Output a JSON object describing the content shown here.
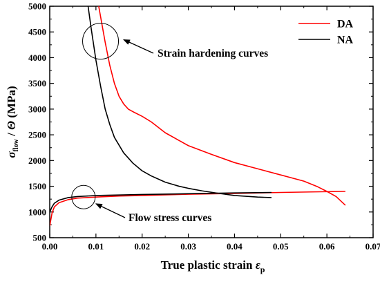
{
  "chart_data": {
    "type": "line",
    "xlabel": "True plastic strain ε",
    "xlabel_sub": "p",
    "ylabel": "σ / Θ (MPa)",
    "ylabel_sub": "flow",
    "xlim": [
      0.0,
      0.07
    ],
    "ylim": [
      500,
      5000
    ],
    "x_ticks": [
      "0.00",
      "0.01",
      "0.02",
      "0.03",
      "0.04",
      "0.05",
      "0.06",
      "0.07"
    ],
    "y_ticks": [
      "500",
      "1000",
      "1500",
      "2000",
      "2500",
      "3000",
      "3500",
      "4000",
      "4500",
      "5000"
    ],
    "legend_position": "top-right",
    "grid": false,
    "series": [
      {
        "name": "DA",
        "color": "#ff0000",
        "curves": [
          {
            "kind": "strain-hardening",
            "points": [
              [
                0.0106,
                5000
              ],
              [
                0.0112,
                4700
              ],
              [
                0.012,
                4300
              ],
              [
                0.013,
                3850
              ],
              [
                0.014,
                3500
              ],
              [
                0.015,
                3250
              ],
              [
                0.016,
                3100
              ],
              [
                0.017,
                3000
              ],
              [
                0.018,
                2950
              ],
              [
                0.02,
                2860
              ],
              [
                0.022,
                2750
              ],
              [
                0.025,
                2540
              ],
              [
                0.028,
                2390
              ],
              [
                0.03,
                2290
              ],
              [
                0.035,
                2120
              ],
              [
                0.04,
                1960
              ],
              [
                0.045,
                1840
              ],
              [
                0.05,
                1720
              ],
              [
                0.055,
                1600
              ],
              [
                0.058,
                1490
              ],
              [
                0.06,
                1400
              ],
              [
                0.062,
                1300
              ],
              [
                0.064,
                1130
              ]
            ]
          },
          {
            "kind": "flow-stress",
            "points": [
              [
                0.0,
                730
              ],
              [
                0.0005,
                980
              ],
              [
                0.001,
                1100
              ],
              [
                0.002,
                1180
              ],
              [
                0.004,
                1240
              ],
              [
                0.006,
                1270
              ],
              [
                0.01,
                1290
              ],
              [
                0.015,
                1310
              ],
              [
                0.02,
                1320
              ],
              [
                0.03,
                1345
              ],
              [
                0.04,
                1360
              ],
              [
                0.05,
                1380
              ],
              [
                0.06,
                1395
              ],
              [
                0.064,
                1400
              ]
            ]
          }
        ]
      },
      {
        "name": "NA",
        "color": "#000000",
        "curves": [
          {
            "kind": "strain-hardening",
            "points": [
              [
                0.0083,
                5000
              ],
              [
                0.009,
                4550
              ],
              [
                0.01,
                3950
              ],
              [
                0.011,
                3450
              ],
              [
                0.012,
                3000
              ],
              [
                0.013,
                2700
              ],
              [
                0.014,
                2450
              ],
              [
                0.016,
                2150
              ],
              [
                0.018,
                1950
              ],
              [
                0.02,
                1800
              ],
              [
                0.022,
                1700
              ],
              [
                0.025,
                1580
              ],
              [
                0.028,
                1500
              ],
              [
                0.03,
                1460
              ],
              [
                0.033,
                1410
              ],
              [
                0.036,
                1370
              ],
              [
                0.04,
                1320
              ],
              [
                0.045,
                1290
              ],
              [
                0.048,
                1280
              ]
            ]
          },
          {
            "kind": "flow-stress",
            "points": [
              [
                0.0,
                1000
              ],
              [
                0.0005,
                1100
              ],
              [
                0.001,
                1170
              ],
              [
                0.002,
                1230
              ],
              [
                0.004,
                1280
              ],
              [
                0.006,
                1300
              ],
              [
                0.01,
                1320
              ],
              [
                0.015,
                1330
              ],
              [
                0.02,
                1340
              ],
              [
                0.03,
                1355
              ],
              [
                0.04,
                1370
              ],
              [
                0.048,
                1380
              ]
            ]
          }
        ]
      }
    ],
    "annotations": [
      {
        "text": "Strain hardening curves",
        "circle_at": [
          0.011,
          4320
        ],
        "arrow_to": [
          0.0145,
          4350
        ]
      },
      {
        "text": "Flow stress curves",
        "circle_at": [
          0.0073,
          1290
        ],
        "arrow_to": [
          0.0085,
          1160
        ]
      }
    ]
  }
}
